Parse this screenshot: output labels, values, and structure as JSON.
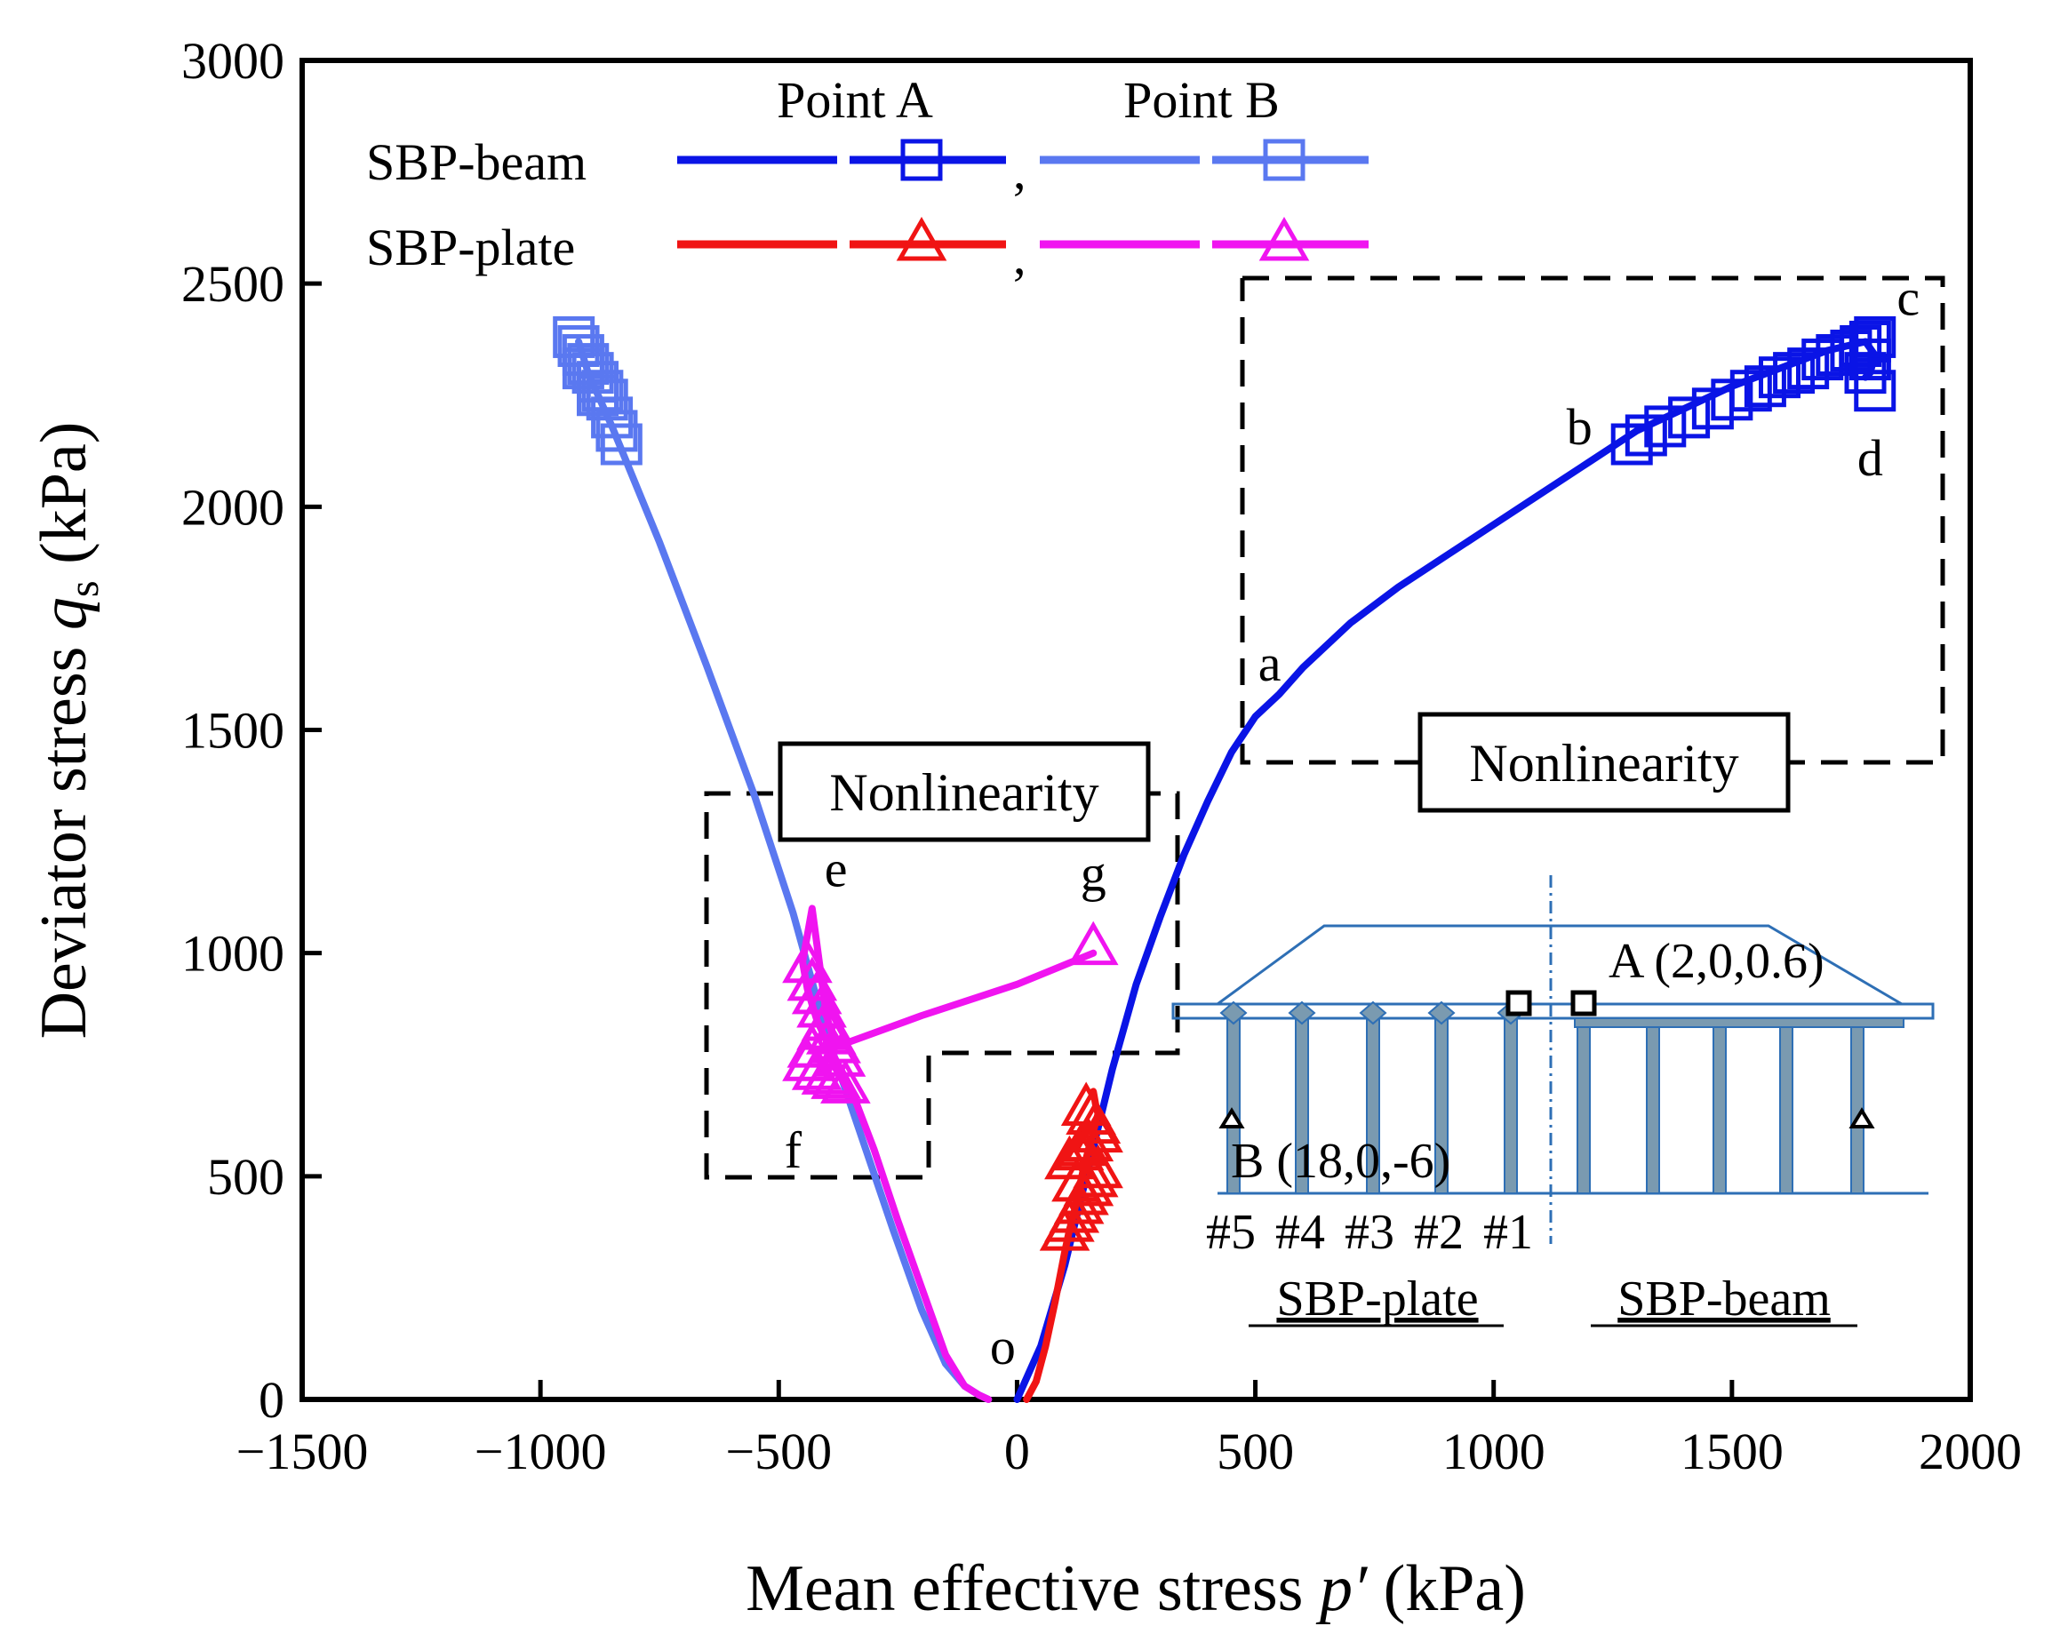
{
  "chart_data": {
    "type": "line",
    "xlabel_main": "Mean effective stress ",
    "xlabel_var": "p′",
    "xlabel_unit": " (kPa)",
    "ylabel_main": "Deviator stress ",
    "ylabel_var": "q",
    "ylabel_sub": "s",
    "ylabel_unit": " (kPa)",
    "xlim": [
      -1500,
      2000
    ],
    "ylim": [
      0,
      3000
    ],
    "xticks": [
      -1500,
      -1000,
      -500,
      0,
      500,
      1000,
      1500,
      2000
    ],
    "yticks": [
      0,
      500,
      1000,
      1500,
      2000,
      2500,
      3000
    ],
    "xtick_labels": [
      "−1500",
      "−1000",
      "−500",
      "0",
      "500",
      "1000",
      "1500",
      "2000"
    ],
    "ytick_labels": [
      "0",
      "500",
      "1000",
      "1500",
      "2000",
      "2500",
      "3000"
    ],
    "legend": {
      "col_a": "Point A",
      "col_b": "Point B",
      "row_beam": "SBP-beam",
      "row_plate": "SBP-plate",
      "separator": ","
    },
    "series": [
      {
        "name": "SBP-beam Point A",
        "color": "#0a14e6",
        "marker": "square",
        "x": [
          0,
          50,
          100,
          150,
          200,
          250,
          300,
          350,
          400,
          450,
          500,
          550,
          600,
          700,
          800,
          900,
          1000,
          1100,
          1200,
          1300,
          1400,
          1500,
          1600,
          1700,
          1780,
          1800,
          1790,
          1780
        ],
        "y": [
          0,
          120,
          300,
          520,
          740,
          930,
          1080,
          1220,
          1340,
          1450,
          1530,
          1580,
          1640,
          1740,
          1820,
          1890,
          1960,
          2030,
          2100,
          2170,
          2220,
          2270,
          2310,
          2350,
          2370,
          2340,
          2300,
          2290
        ],
        "markers_x": [
          1290,
          1320,
          1360,
          1410,
          1460,
          1500,
          1540,
          1570,
          1600,
          1630,
          1660,
          1690,
          1720,
          1750,
          1770,
          1790,
          1800,
          1780,
          1790,
          1800
        ],
        "markers_y": [
          2140,
          2160,
          2180,
          2200,
          2220,
          2240,
          2260,
          2270,
          2290,
          2300,
          2310,
          2330,
          2340,
          2350,
          2360,
          2370,
          2380,
          2300,
          2330,
          2260
        ]
      },
      {
        "name": "SBP-beam Point B",
        "color": "#5a78f0",
        "marker": "square",
        "x": [
          -60,
          -80,
          -110,
          -150,
          -200,
          -260,
          -330,
          -400,
          -470,
          -550,
          -650,
          -750,
          -850,
          -900,
          -920
        ],
        "y": [
          0,
          10,
          30,
          80,
          200,
          380,
          600,
          820,
          1090,
          1350,
          1640,
          1920,
          2180,
          2300,
          2370
        ],
        "markers_x": [
          -930,
          -920,
          -910,
          -900,
          -890,
          -880,
          -870,
          -860,
          -850,
          -840,
          -830,
          -910,
          -880
        ],
        "markers_y": [
          2380,
          2360,
          2340,
          2320,
          2300,
          2280,
          2260,
          2240,
          2200,
          2170,
          2140,
          2310,
          2250
        ]
      },
      {
        "name": "SBP-plate Point A",
        "color": "#f01414",
        "marker": "triangle",
        "x": [
          20,
          40,
          60,
          80,
          100,
          110,
          120,
          130,
          140,
          150,
          160,
          170,
          165,
          160
        ],
        "y": [
          0,
          40,
          120,
          220,
          330,
          380,
          420,
          470,
          520,
          560,
          600,
          640,
          660,
          690
        ],
        "markers_x": [
          100,
          110,
          120,
          130,
          140,
          150,
          160,
          170,
          110,
          130,
          150,
          170,
          165,
          155,
          145,
          135,
          125
        ],
        "markers_y": [
          370,
          390,
          410,
          430,
          450,
          470,
          490,
          510,
          530,
          550,
          570,
          590,
          610,
          630,
          650,
          560,
          480
        ]
      },
      {
        "name": "SBP-plate Point B",
        "color": "#f014f0",
        "marker": "triangle",
        "x": [
          -60,
          -80,
          -110,
          -150,
          -200,
          -250,
          -300,
          -350,
          -390,
          -420,
          -440,
          -450,
          -430,
          -400,
          -380,
          -200,
          0,
          160
        ],
        "y": [
          0,
          10,
          30,
          100,
          250,
          400,
          560,
          700,
          780,
          850,
          920,
          980,
          1100,
          860,
          790,
          860,
          930,
          1000
        ],
        "markers_x": [
          -440,
          -430,
          -420,
          -410,
          -400,
          -390,
          -380,
          -370,
          -440,
          -420,
          -400,
          -380,
          -360,
          -430,
          -410,
          160
        ],
        "markers_y": [
          970,
          930,
          900,
          870,
          840,
          810,
          790,
          760,
          750,
          730,
          720,
          710,
          700,
          780,
          820,
          1010
        ]
      }
    ],
    "annotations": [
      {
        "text": "a",
        "x": 530,
        "y": 1610
      },
      {
        "text": "b",
        "x": 1180,
        "y": 2140
      },
      {
        "text": "c",
        "x": 1870,
        "y": 2430
      },
      {
        "text": "d",
        "x": 1790,
        "y": 2070
      },
      {
        "text": "e",
        "x": -380,
        "y": 1150
      },
      {
        "text": "f",
        "x": -470,
        "y": 520
      },
      {
        "text": "g",
        "x": 160,
        "y": 1140
      },
      {
        "text": "o",
        "x": -30,
        "y": 80
      }
    ],
    "boxes": [
      {
        "label": "Nonlinearity"
      },
      {
        "label": "Nonlinearity"
      }
    ],
    "inset": {
      "pile_labels": [
        "#5",
        "#4",
        "#3",
        "#2",
        "#1"
      ],
      "point_a_label": "A (2,0,0.6)",
      "point_b_label": "B (18,0,-6)",
      "plate_title": "SBP-plate",
      "beam_title": "SBP-beam"
    }
  }
}
